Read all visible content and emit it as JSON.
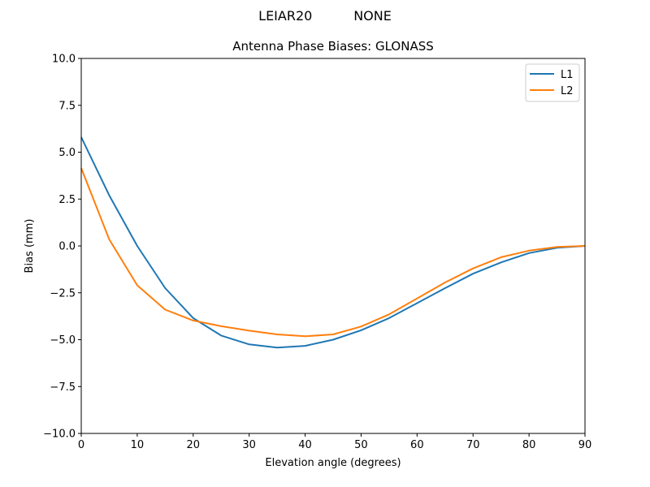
{
  "figure": {
    "suptitle_left": "LEIAR20",
    "suptitle_right": "NONE",
    "title": "Antenna Phase Biases: GLONASS",
    "xlabel": "Elevation angle (degrees)",
    "ylabel": "Bias (mm)",
    "xticks": [
      "0",
      "10",
      "20",
      "30",
      "40",
      "50",
      "60",
      "70",
      "80",
      "90"
    ],
    "yticks": [
      "10.0",
      "7.5",
      "5.0",
      "2.5",
      "0.0",
      "−2.5",
      "−5.0",
      "−7.5",
      "−10.0"
    ],
    "legend": [
      {
        "label": "L1",
        "color": "#1f77b4"
      },
      {
        "label": "L2",
        "color": "#ff7f0e"
      }
    ]
  },
  "chart_data": {
    "type": "line",
    "title": "Antenna Phase Biases: GLONASS",
    "suptitle": "LEIAR20          NONE",
    "xlabel": "Elevation angle (degrees)",
    "ylabel": "Bias (mm)",
    "xlim": [
      0,
      90
    ],
    "ylim": [
      -10,
      10
    ],
    "grid": false,
    "legend_position": "upper right",
    "x": [
      0,
      5,
      10,
      15,
      20,
      25,
      30,
      35,
      40,
      45,
      50,
      55,
      60,
      65,
      70,
      75,
      80,
      85,
      90
    ],
    "series": [
      {
        "name": "L1",
        "color": "#1f77b4",
        "values": [
          5.8,
          2.7,
          0.0,
          -2.25,
          -3.85,
          -4.78,
          -5.25,
          -5.42,
          -5.33,
          -5.0,
          -4.5,
          -3.85,
          -3.05,
          -2.25,
          -1.48,
          -0.88,
          -0.38,
          -0.1,
          0.0
        ]
      },
      {
        "name": "L2",
        "color": "#ff7f0e",
        "values": [
          4.15,
          0.35,
          -2.1,
          -3.4,
          -3.98,
          -4.28,
          -4.52,
          -4.72,
          -4.82,
          -4.72,
          -4.3,
          -3.65,
          -2.8,
          -1.95,
          -1.2,
          -0.6,
          -0.25,
          -0.05,
          0.0
        ]
      }
    ]
  }
}
